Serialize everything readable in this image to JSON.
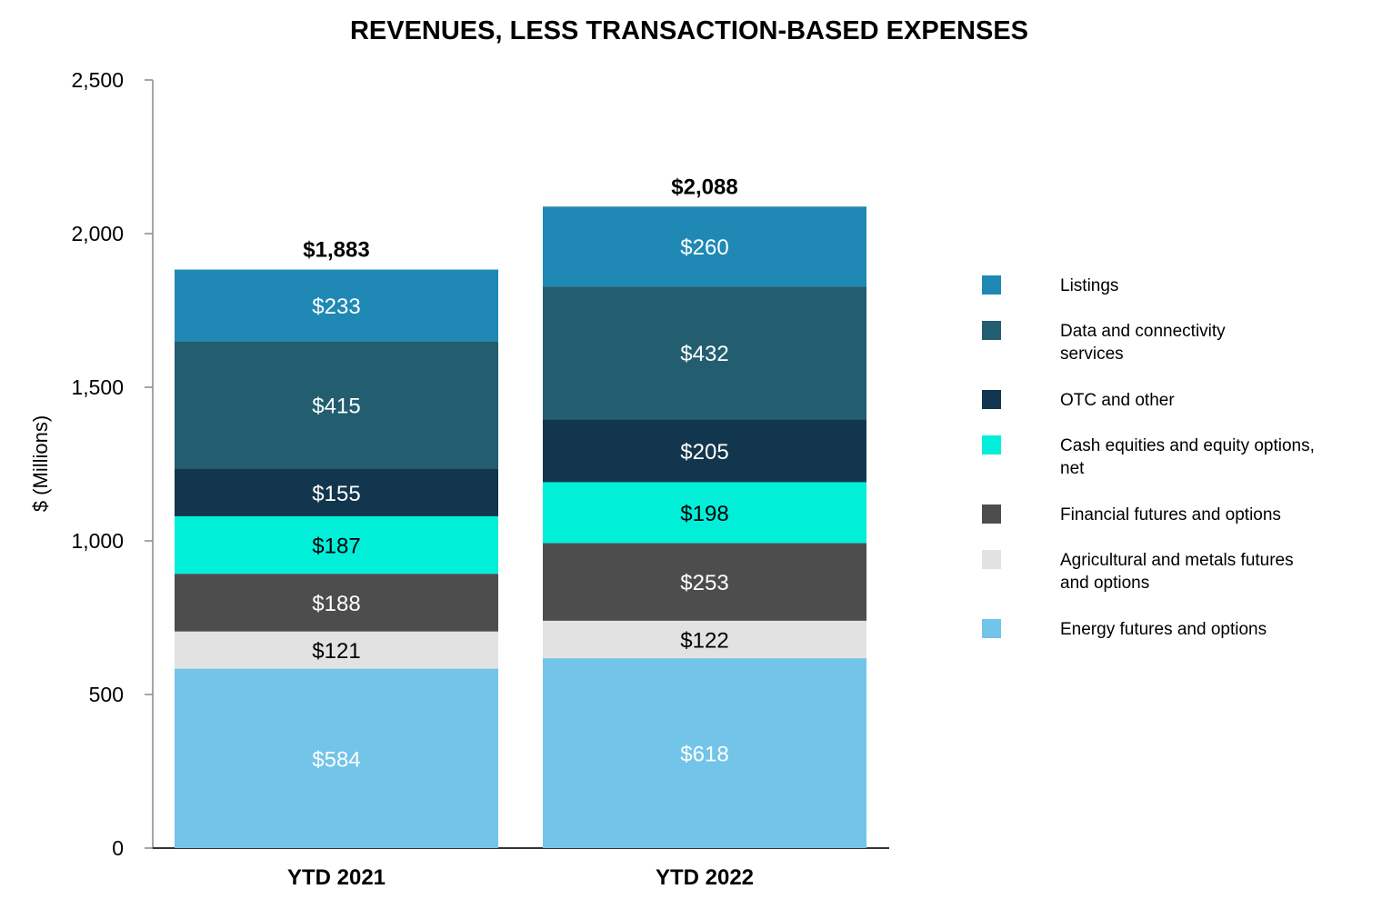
{
  "chart_data": {
    "type": "bar",
    "stacked": true,
    "title": "REVENUES, LESS TRANSACTION-BASED EXPENSES",
    "xlabel": "",
    "ylabel": "$ (Millions)",
    "ylim": [
      0,
      2500
    ],
    "yticks": [
      0,
      500,
      1000,
      1500,
      2000,
      2500
    ],
    "ytick_labels": [
      "0",
      "500",
      "1,000",
      "1,500",
      "2,000",
      "2,500"
    ],
    "grid": false,
    "legend_position": "right",
    "categories": [
      "YTD 2021",
      "YTD 2022"
    ],
    "totals": [
      1883,
      2088
    ],
    "total_labels": [
      "$1,883",
      "$2,088"
    ],
    "series": [
      {
        "name": "Energy futures and options",
        "values": [
          584,
          618
        ],
        "labels": [
          "$584",
          "$618"
        ],
        "color": "#72c4e8",
        "label_color": "#ffffff"
      },
      {
        "name": "Agricultural and metals futures\nand options",
        "values": [
          121,
          122
        ],
        "labels": [
          "$121",
          "$122"
        ],
        "color": "#e2e2e2",
        "label_color": "#000000"
      },
      {
        "name": "Financial futures and options",
        "values": [
          188,
          253
        ],
        "labels": [
          "$188",
          "$253"
        ],
        "color": "#4d4d4d",
        "label_color": "#ffffff"
      },
      {
        "name": "Cash equities and equity options,\n net",
        "values": [
          187,
          198
        ],
        "labels": [
          "$187",
          "$198"
        ],
        "color": "#00efd9",
        "label_color": "#000000"
      },
      {
        "name": "OTC and other",
        "values": [
          155,
          205
        ],
        "labels": [
          "$155",
          "$205"
        ],
        "color": "#12364d",
        "label_color": "#ffffff"
      },
      {
        "name": "Data and connectivity\nservices",
        "values": [
          415,
          432
        ],
        "labels": [
          "$415",
          "$432"
        ],
        "color": "#225e70",
        "label_color": "#ffffff"
      },
      {
        "name": "Listings",
        "values": [
          233,
          260
        ],
        "labels": [
          "$233",
          "$260"
        ],
        "color": "#1f88b5",
        "label_color": "#ffffff"
      }
    ]
  }
}
